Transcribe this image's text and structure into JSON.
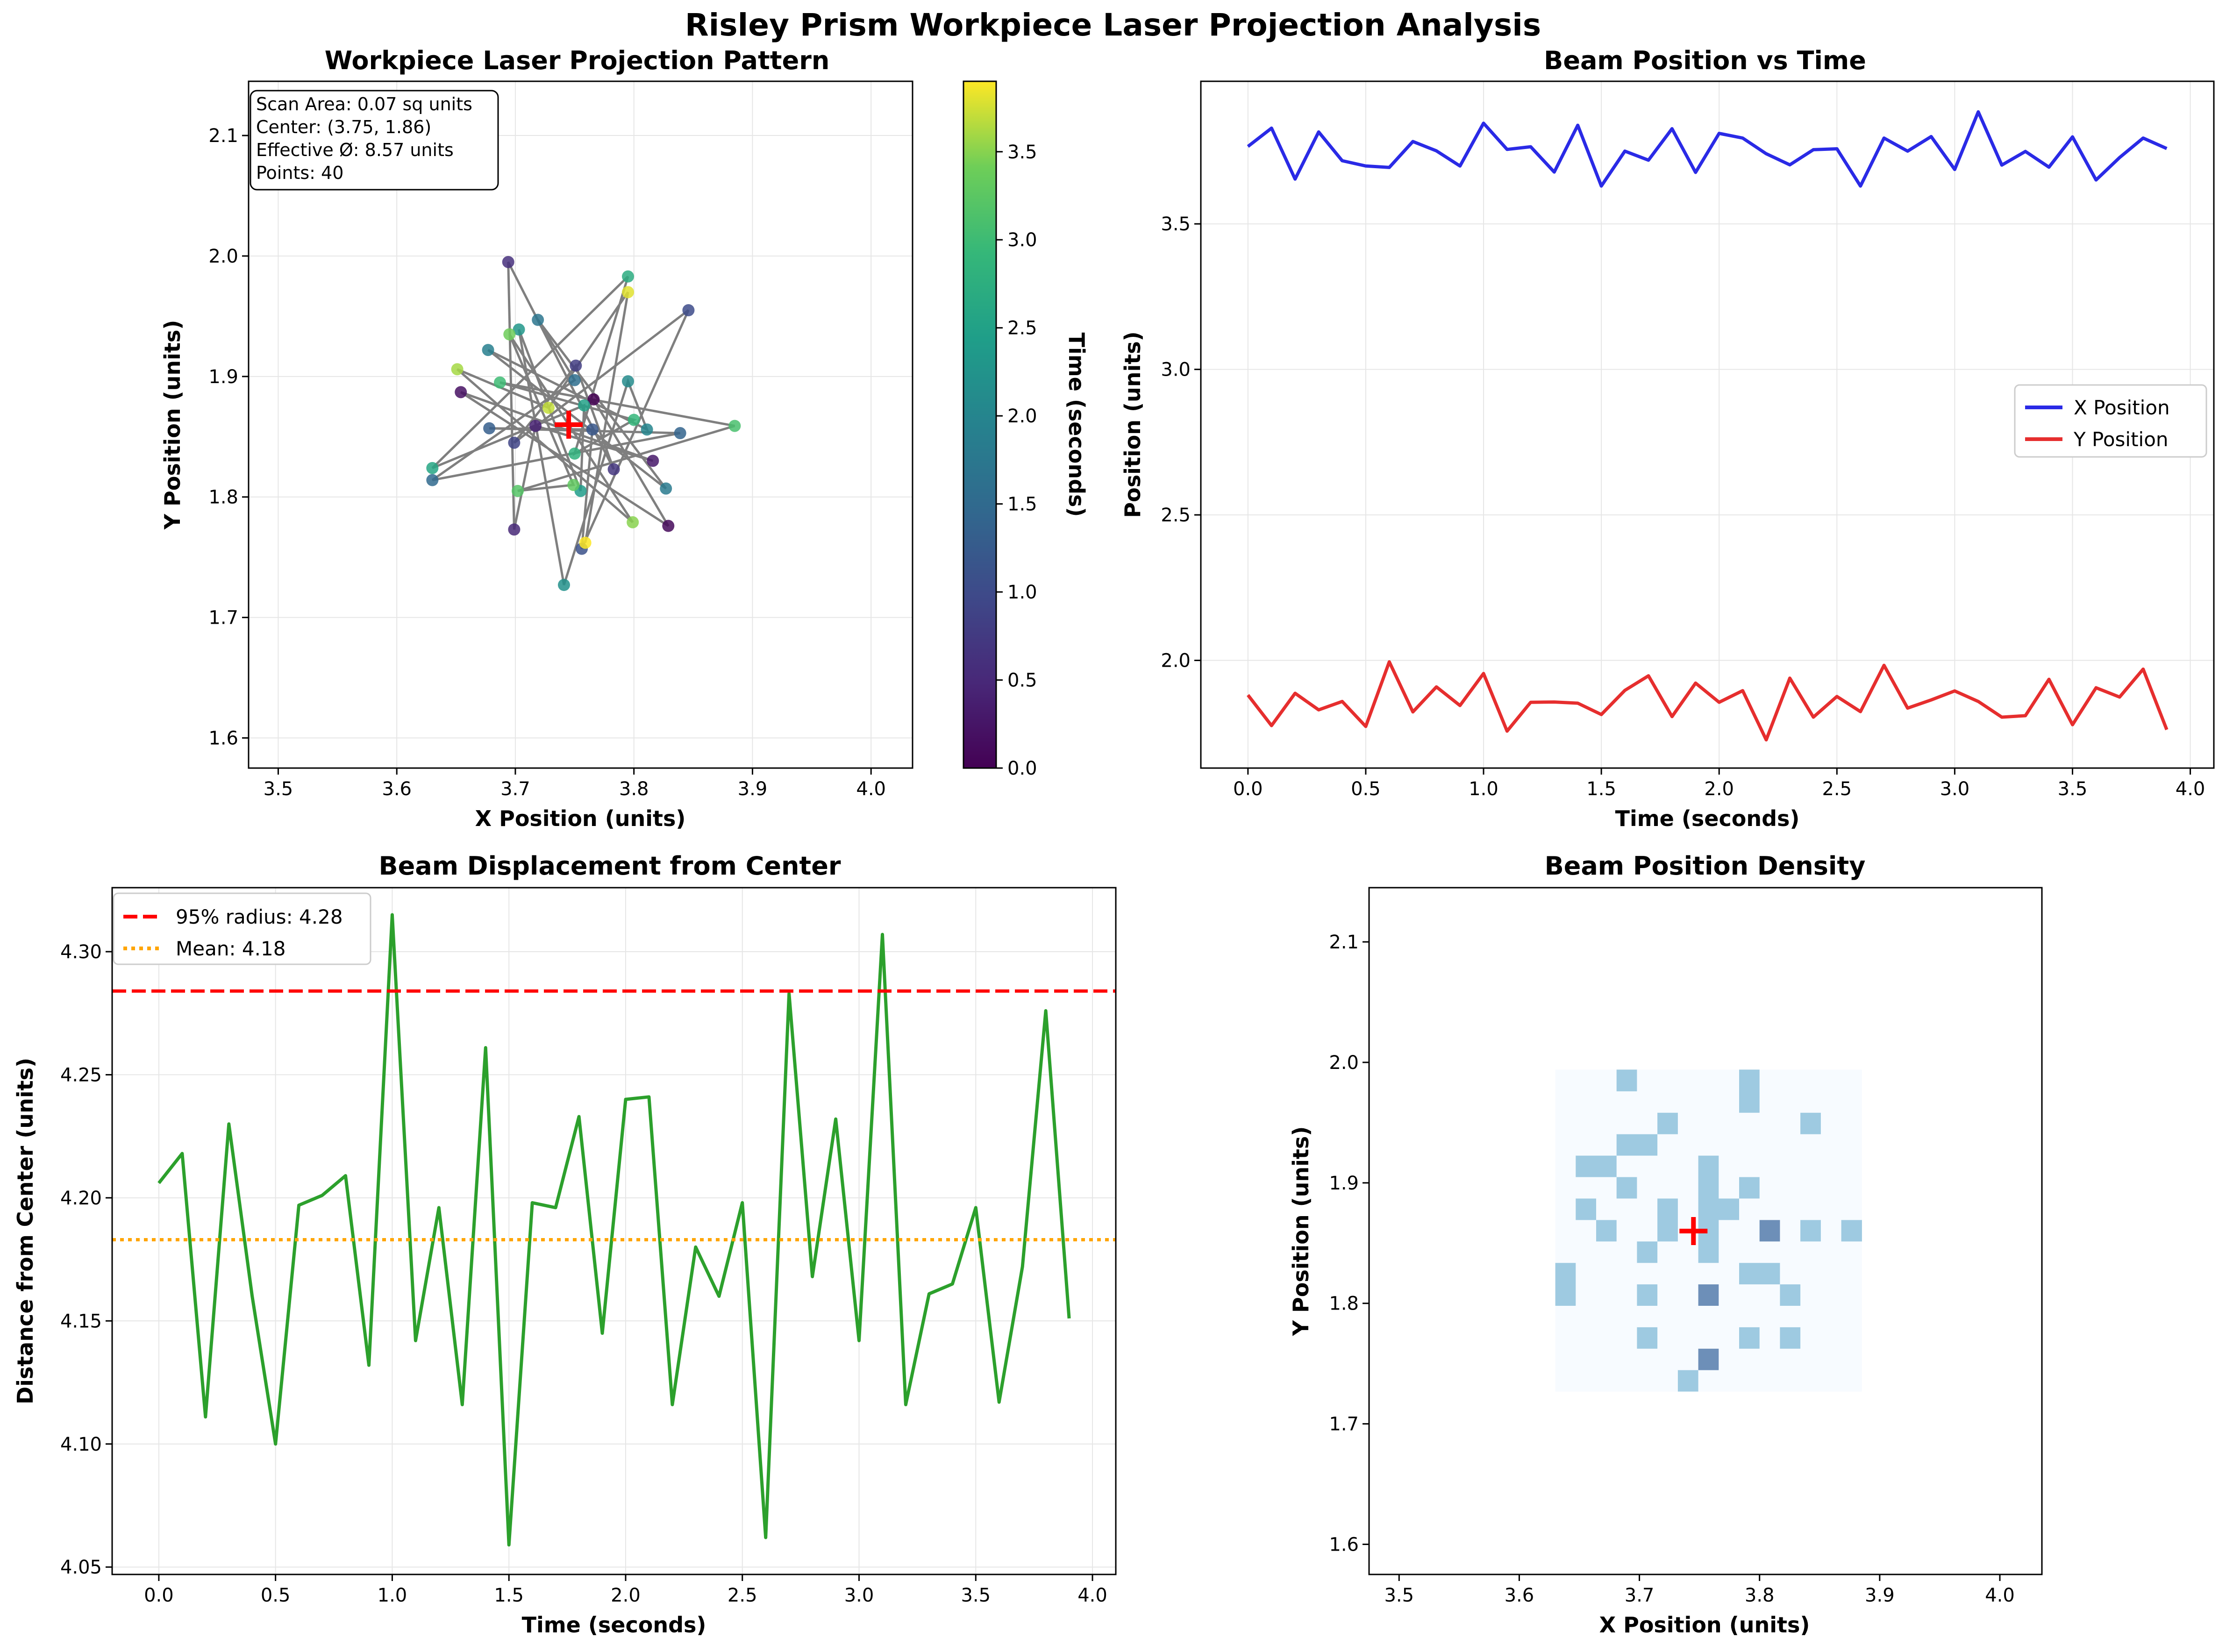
{
  "suptitle": "Risley Prism Workpiece Laser Projection Analysis",
  "colors": {
    "x_series": "#2a2ae6",
    "y_series": "#e62e2e",
    "displacement": "#2ca02c",
    "radius95": "#ff0000",
    "mean": "#ffa500",
    "center_marker": "#ff0000",
    "path_line": "#7f7f7f",
    "colormap": "viridis",
    "density_colormap": "Blues"
  },
  "chart_data": [
    {
      "id": "projection",
      "type": "scatter",
      "title": "Workpiece Laser Projection Pattern",
      "xlabel": "X Position (units)",
      "ylabel": "Y Position (units)",
      "xlim": [
        3.475,
        4.035
      ],
      "ylim": [
        1.575,
        2.145
      ],
      "xticks": [
        3.5,
        3.6,
        3.7,
        3.8,
        3.9,
        4.0
      ],
      "yticks": [
        1.6,
        1.7,
        1.8,
        1.9,
        2.0,
        2.1
      ],
      "grid": true,
      "colorbar": {
        "label": "Time (seconds)",
        "range": [
          0,
          3.9
        ],
        "ticks": [
          0.0,
          0.5,
          1.0,
          1.5,
          2.0,
          2.5,
          3.0,
          3.5
        ]
      },
      "info_box": [
        "Scan Area: 0.07 sq units",
        "Center: (3.75, 1.86)",
        "Effective Ø: 8.57 units",
        "Points: 40"
      ],
      "center": {
        "x": 3.745,
        "y": 1.86
      }
    },
    {
      "id": "position_time",
      "type": "line",
      "title": "Beam Position vs Time",
      "xlabel": "Time (seconds)",
      "ylabel": "Position (units)",
      "xlim": [
        -0.2,
        4.1
      ],
      "ylim": [
        1.63,
        3.99
      ],
      "xticks": [
        0.0,
        0.5,
        1.0,
        1.5,
        2.0,
        2.5,
        3.0,
        3.5,
        4.0
      ],
      "yticks": [
        2.0,
        2.5,
        3.0,
        3.5
      ],
      "grid": true,
      "legend": "center-right",
      "series": [
        {
          "name": "X Position",
          "color": "#2a2ae6"
        },
        {
          "name": "Y Position",
          "color": "#e62e2e"
        }
      ]
    },
    {
      "id": "displacement",
      "type": "line",
      "title": "Beam Displacement from Center",
      "xlabel": "Time (seconds)",
      "ylabel": "Distance from Center (units)",
      "xlim": [
        -0.2,
        4.1
      ],
      "ylim": [
        4.047,
        4.326
      ],
      "xticks": [
        0.0,
        0.5,
        1.0,
        1.5,
        2.0,
        2.5,
        3.0,
        3.5,
        4.0
      ],
      "yticks": [
        4.05,
        4.1,
        4.15,
        4.2,
        4.25,
        4.3
      ],
      "grid": true,
      "legend": "top-left",
      "radius95": 4.284,
      "mean": 4.183,
      "legend_labels": [
        "95% radius: 4.28",
        "Mean: 4.18"
      ],
      "values": [
        4.206,
        4.218,
        4.111,
        4.23,
        4.16,
        4.1,
        4.197,
        4.201,
        4.209,
        4.132,
        4.315,
        4.142,
        4.196,
        4.116,
        4.261,
        4.059,
        4.198,
        4.196,
        4.233,
        4.145,
        4.24,
        4.241,
        4.116,
        4.18,
        4.16,
        4.198,
        4.062,
        4.283,
        4.168,
        4.232,
        4.142,
        4.307,
        4.116,
        4.161,
        4.165,
        4.196,
        4.117,
        4.172,
        4.276,
        4.151
      ]
    },
    {
      "id": "density",
      "type": "heatmap",
      "title": "Beam Position Density",
      "xlabel": "X Position (units)",
      "ylabel": "Y Position (units)",
      "xlim": [
        3.475,
        4.035
      ],
      "ylim": [
        1.575,
        2.145
      ],
      "xticks": [
        3.5,
        3.6,
        3.7,
        3.8,
        3.9,
        4.0
      ],
      "yticks": [
        1.6,
        1.7,
        1.8,
        1.9,
        2.0,
        2.1
      ],
      "bins": 15,
      "range_x": [
        3.63,
        3.885
      ],
      "range_y": [
        1.727,
        1.994
      ],
      "center": {
        "x": 3.745,
        "y": 1.86
      }
    }
  ],
  "time": [
    0.0,
    0.1,
    0.2,
    0.3,
    0.4,
    0.5,
    0.6,
    0.7,
    0.8,
    0.9,
    1.0,
    1.1,
    1.2,
    1.3,
    1.4,
    1.5,
    1.6,
    1.7,
    1.8,
    1.9,
    2.0,
    2.1,
    2.2,
    2.3,
    2.4,
    2.5,
    2.6,
    2.7,
    2.8,
    2.9,
    3.0,
    3.1,
    3.2,
    3.3,
    3.4,
    3.5,
    3.6,
    3.7,
    3.8,
    3.9
  ],
  "x_positions": [
    3.766,
    3.829,
    3.654,
    3.816,
    3.717,
    3.699,
    3.694,
    3.783,
    3.751,
    3.699,
    3.846,
    3.756,
    3.765,
    3.678,
    3.839,
    3.63,
    3.75,
    3.719,
    3.827,
    3.677,
    3.811,
    3.795,
    3.741,
    3.703,
    3.755,
    3.758,
    3.63,
    3.795,
    3.75,
    3.8,
    3.687,
    3.885,
    3.702,
    3.749,
    3.695,
    3.799,
    3.651,
    3.728,
    3.795,
    3.759
  ],
  "y_positions": [
    1.881,
    1.776,
    1.887,
    1.83,
    1.859,
    1.773,
    1.995,
    1.823,
    1.909,
    1.845,
    1.955,
    1.757,
    1.856,
    1.857,
    1.853,
    1.814,
    1.897,
    1.947,
    1.807,
    1.922,
    1.856,
    1.896,
    1.727,
    1.939,
    1.805,
    1.876,
    1.824,
    1.983,
    1.836,
    1.864,
    1.895,
    1.859,
    1.805,
    1.81,
    1.935,
    1.779,
    1.906,
    1.874,
    1.97,
    1.762
  ]
}
